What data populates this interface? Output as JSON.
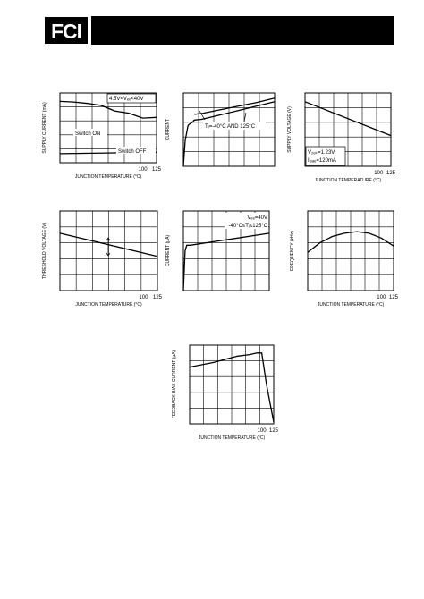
{
  "header": {
    "logo_text": "FCI"
  },
  "colors": {
    "ink": "#000000",
    "banner": "#000000",
    "background": "#ffffff"
  },
  "chart_data": [
    {
      "type": "line",
      "ylabel": "SUPPLY  CURRENT (mA)",
      "xlabel": "JUNCTION TEMPERATURE (°C)",
      "xticks": [
        "100",
        "125"
      ],
      "xlim": [
        -50,
        125
      ],
      "ylim": [
        0,
        1
      ],
      "grid": true,
      "annotations": [
        "4.5V<Vₑₑ<40V",
        "Switch ON",
        "Switch OFF"
      ],
      "series": [
        {
          "name": "Switch ON",
          "x": [
            -50,
            -25,
            0,
            25,
            50,
            75,
            100,
            125
          ],
          "y": [
            0.88,
            0.87,
            0.85,
            0.82,
            0.74,
            0.71,
            0.64,
            0.65
          ]
        },
        {
          "name": "Switch OFF",
          "x": [
            -50,
            125
          ],
          "y": [
            0.13,
            0.15
          ]
        }
      ]
    },
    {
      "type": "line",
      "ylabel": "CURRENT",
      "xlabel": "",
      "xticks": [],
      "xlim": [
        0,
        1
      ],
      "ylim": [
        0,
        1
      ],
      "grid": true,
      "annotations": [
        "Tⱼ=-40°C AND 125°C"
      ],
      "series": [
        {
          "x": [
            0.0,
            0.02,
            0.05,
            0.06,
            0.1,
            0.12,
            0.2,
            0.4,
            0.6,
            0.8,
            1.0
          ],
          "y": [
            0.0,
            0.35,
            0.55,
            0.57,
            0.6,
            0.63,
            0.64,
            0.7,
            0.76,
            0.82,
            0.88
          ]
        },
        {
          "x": [
            0.12,
            0.2,
            0.4,
            0.6,
            0.8,
            1.0
          ],
          "y": [
            0.71,
            0.72,
            0.77,
            0.82,
            0.87,
            0.93
          ]
        }
      ]
    },
    {
      "type": "line",
      "ylabel": "SUPPLY VOLTAGE (V)",
      "xlabel": "JUNCTION TEMPERATURE (°C)",
      "xticks": [
        "100",
        "125"
      ],
      "xlim": [
        -50,
        125
      ],
      "ylim": [
        0,
        1
      ],
      "grid": true,
      "annotations": [
        "V₂ₑₖ=1.23V",
        "Iₗₒₐₑ=120mA"
      ],
      "series": [
        {
          "x": [
            -50,
            125
          ],
          "y": [
            0.88,
            0.42
          ]
        }
      ]
    },
    {
      "type": "line",
      "ylabel": "THRESHOLD VOLTAGE (V)",
      "xlabel": "JUNCTION TEMPERATURE (°C)",
      "xticks": [
        "100",
        "125"
      ],
      "xlim": [
        -50,
        125
      ],
      "ylim": [
        0,
        1
      ],
      "grid": true,
      "annotations": [],
      "series": [
        {
          "x": [
            -50,
            125
          ],
          "y": [
            0.72,
            0.43
          ]
        }
      ]
    },
    {
      "type": "line",
      "ylabel": "CURRENT (µA)",
      "xlabel": "",
      "xticks": [],
      "xlim": [
        0,
        1
      ],
      "ylim": [
        0,
        1
      ],
      "grid": true,
      "annotations": [
        "Vₑₑ=40V",
        "-40°C≤Tⱼ≤125°C"
      ],
      "series": [
        {
          "x": [
            0.0,
            0.02,
            0.04,
            0.08,
            1.0
          ],
          "y": [
            0.0,
            0.5,
            0.57,
            0.57,
            0.72
          ]
        }
      ]
    },
    {
      "type": "line",
      "ylabel": "FREQUENCY (kHz)",
      "xlabel": "JUNCTION TEMPERATURE (°C)",
      "xticks": [
        "100",
        "125"
      ],
      "xlim": [
        -50,
        125
      ],
      "ylim": [
        0,
        1
      ],
      "grid": true,
      "annotations": [],
      "series": [
        {
          "x": [
            -50,
            -25,
            0,
            25,
            50,
            75,
            100,
            125
          ],
          "y": [
            0.48,
            0.6,
            0.68,
            0.72,
            0.74,
            0.72,
            0.66,
            0.56
          ]
        }
      ]
    },
    {
      "type": "line",
      "ylabel": "FEEDBACK BIAS CURRENT (µA)",
      "xlabel": "JUNCTION TEMPERATURE (°C)",
      "xticks": [
        "100",
        "125"
      ],
      "xlim": [
        -50,
        125
      ],
      "ylim": [
        0,
        1
      ],
      "grid": true,
      "annotations": [],
      "series": [
        {
          "x": [
            -50,
            -25,
            0,
            25,
            50,
            75,
            90,
            100,
            110,
            125
          ],
          "y": [
            0.72,
            0.75,
            0.78,
            0.82,
            0.86,
            0.88,
            0.9,
            0.9,
            0.5,
            0.02
          ]
        }
      ]
    }
  ]
}
